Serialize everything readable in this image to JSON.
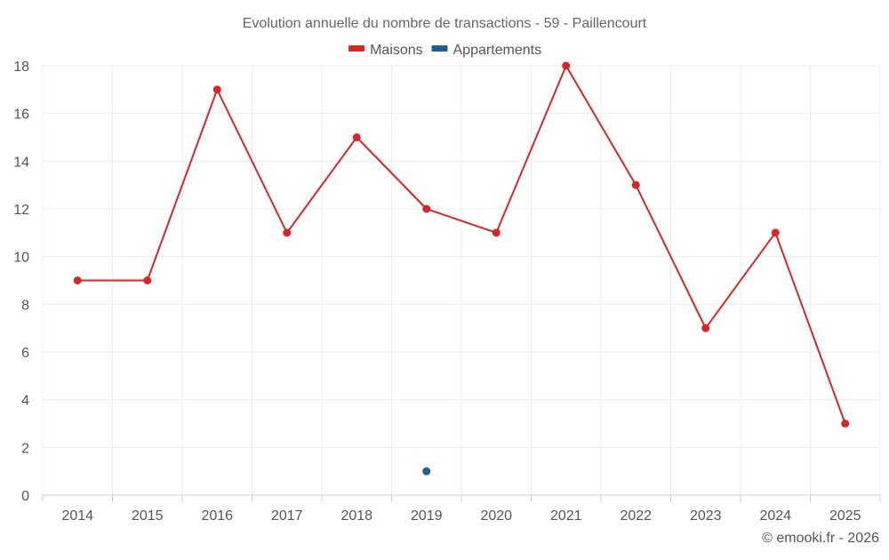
{
  "chart_data": {
    "type": "line",
    "title": "Evolution annuelle du nombre de transactions - 59 - Paillencourt",
    "categories": [
      "2014",
      "2015",
      "2016",
      "2017",
      "2018",
      "2019",
      "2020",
      "2021",
      "2022",
      "2023",
      "2024",
      "2025"
    ],
    "series": [
      {
        "name": "Maisons",
        "color": "#d62728",
        "values": [
          9,
          9,
          17,
          11,
          15,
          12,
          11,
          18,
          13,
          7,
          11,
          3
        ]
      },
      {
        "name": "Appartements",
        "color": "#1f5f99",
        "values": [
          null,
          null,
          null,
          null,
          null,
          1,
          null,
          null,
          null,
          null,
          null,
          null
        ]
      }
    ],
    "yticks": [
      0,
      2,
      4,
      6,
      8,
      10,
      12,
      14,
      16,
      18
    ],
    "ylim": [
      0,
      18
    ],
    "xlabel": "",
    "ylabel": "",
    "grid": true,
    "legend": "top-center"
  },
  "credit": "© emooki.fr - 2026"
}
